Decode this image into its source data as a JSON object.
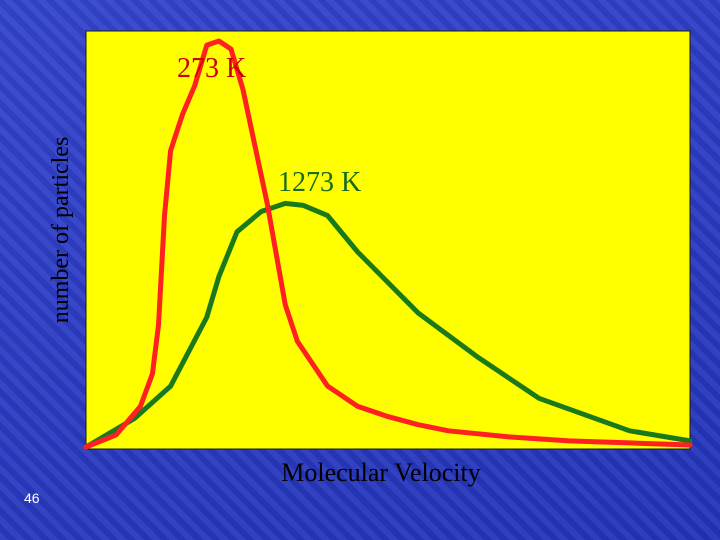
{
  "slide_number": "46",
  "chart_data": {
    "type": "line",
    "title": "",
    "xlabel": "Molecular Velocity",
    "ylabel": "number of particles",
    "background": "#ffff00",
    "grid": false,
    "xlim": [
      0,
      100
    ],
    "ylim": [
      0,
      100
    ],
    "series": [
      {
        "name": "273 K",
        "color": "#ff2020",
        "x": [
          0,
          5,
          9,
          11,
          12,
          13,
          14,
          16,
          18,
          20,
          22,
          24,
          26,
          28,
          30,
          33,
          35,
          40,
          45,
          50,
          55,
          60,
          70,
          80,
          90,
          100
        ],
        "y": [
          0,
          3,
          10,
          18,
          30,
          57,
          73,
          82,
          89,
          99,
          100,
          98,
          88,
          74,
          60,
          35,
          26,
          15,
          10,
          7.5,
          5.5,
          4,
          2.5,
          1.5,
          1,
          0.5
        ]
      },
      {
        "name": "1273 K",
        "color": "#1a7a1a",
        "x": [
          0,
          8,
          14,
          20,
          22,
          25,
          29,
          33,
          36,
          40,
          45,
          55,
          65,
          75,
          90,
          100
        ],
        "y": [
          0,
          7,
          15,
          32,
          42,
          53,
          58,
          60,
          59.5,
          57,
          48,
          33,
          22,
          12,
          4,
          1.5
        ]
      }
    ]
  }
}
